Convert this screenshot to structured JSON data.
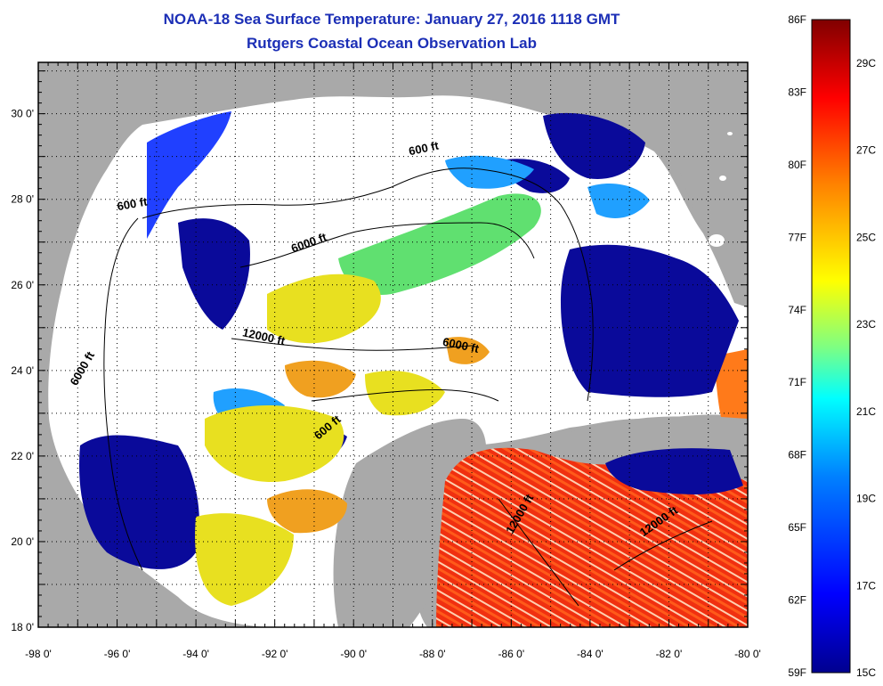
{
  "title": {
    "line1": "NOAA-18 Sea Surface Temperature:  January 27, 2016 1118 GMT",
    "line2": "Rutgers Coastal Ocean Observation Lab"
  },
  "map": {
    "lon_labels": [
      "-98 0'",
      "-96 0'",
      "-94 0'",
      "-92 0'",
      "-90 0'",
      "-88 0'",
      "-86 0'",
      "-84 0'",
      "-82 0'",
      "-80 0'"
    ],
    "lat_labels": [
      "30 0'",
      "28 0'",
      "26 0'",
      "24 0'",
      "22 0'",
      "20 0'",
      "18 0'"
    ],
    "contour_labels": [
      {
        "text": "600 ft",
        "lon": -95.6,
        "lat": 27.8,
        "angle": -10
      },
      {
        "text": "600 ft",
        "lon": -88.2,
        "lat": 29.1,
        "angle": -12
      },
      {
        "text": "6000 ft",
        "lon": -91.1,
        "lat": 26.9,
        "angle": -20
      },
      {
        "text": "12000 ft",
        "lon": -92.3,
        "lat": 24.7,
        "angle": 12
      },
      {
        "text": "6000 ft",
        "lon": -87.3,
        "lat": 24.5,
        "angle": 12
      },
      {
        "text": "6000 ft",
        "lon": -96.8,
        "lat": 24.0,
        "angle": -60
      },
      {
        "text": "600 ft",
        "lon": -90.6,
        "lat": 22.6,
        "angle": -40
      },
      {
        "text": "12000 ft",
        "lon": -85.7,
        "lat": 20.6,
        "angle": -60
      },
      {
        "text": "12000 ft",
        "lon": -82.2,
        "lat": 20.4,
        "angle": -35
      }
    ],
    "colors": {
      "land": "#a9a9a9",
      "cloud": "#ffffff",
      "frame": "#000000"
    }
  },
  "colorbar": {
    "f_labels": [
      "86F",
      "83F",
      "80F",
      "77F",
      "74F",
      "71F",
      "68F",
      "65F",
      "62F",
      "59F"
    ],
    "c_labels": [
      "29C",
      "27C",
      "25C",
      "23C",
      "21C",
      "19C",
      "17C",
      "15C"
    ],
    "f_min": 59,
    "f_max": 86,
    "colors": [
      "#00008f",
      "#0000ff",
      "#0080ff",
      "#00ffff",
      "#80ff80",
      "#ffff00",
      "#ff8000",
      "#ff0000",
      "#800000"
    ]
  }
}
